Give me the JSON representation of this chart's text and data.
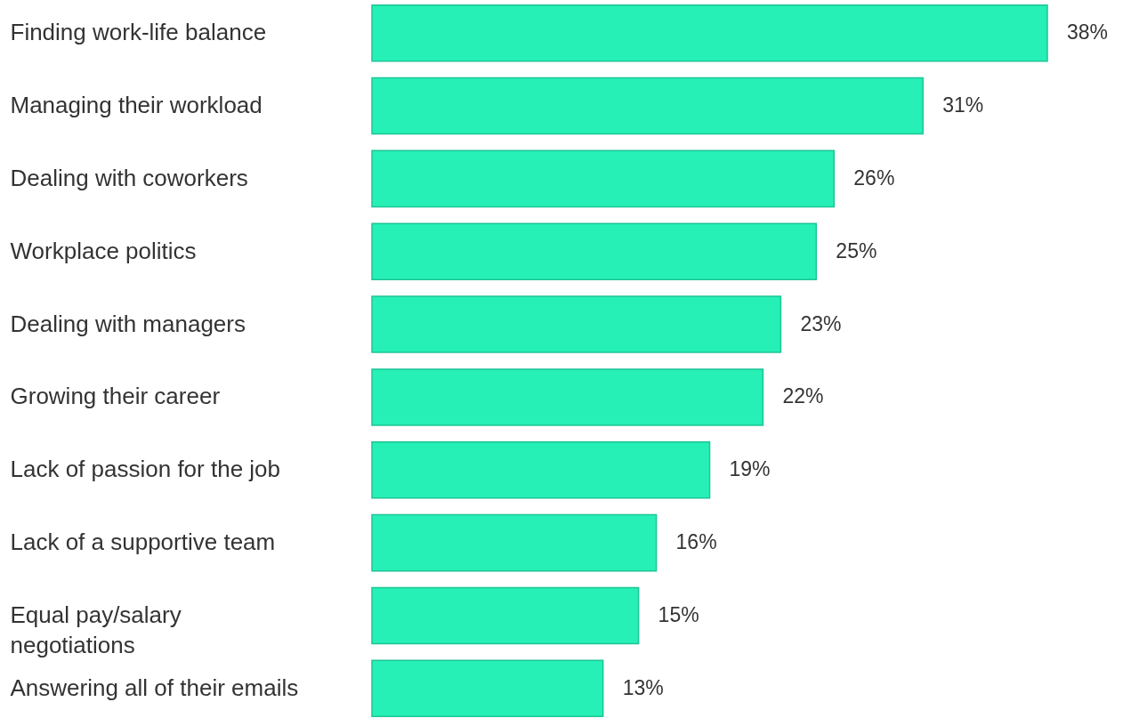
{
  "chart_data": {
    "type": "bar",
    "orientation": "horizontal",
    "categories": [
      "Finding work-life balance",
      "Managing their workload",
      "Dealing with coworkers",
      "Workplace politics",
      "Dealing with managers",
      "Growing their career",
      "Lack of passion for the job",
      "Lack of a supportive team",
      "Equal pay/salary\nnegotiations",
      "Answering all of their emails"
    ],
    "values": [
      38,
      31,
      26,
      25,
      23,
      22,
      19,
      16,
      15,
      13
    ],
    "value_labels": [
      "38%",
      "31%",
      "26%",
      "25%",
      "23%",
      "22%",
      "19%",
      "16%",
      "15%",
      "13%"
    ],
    "color": "#26f0b5"
  }
}
